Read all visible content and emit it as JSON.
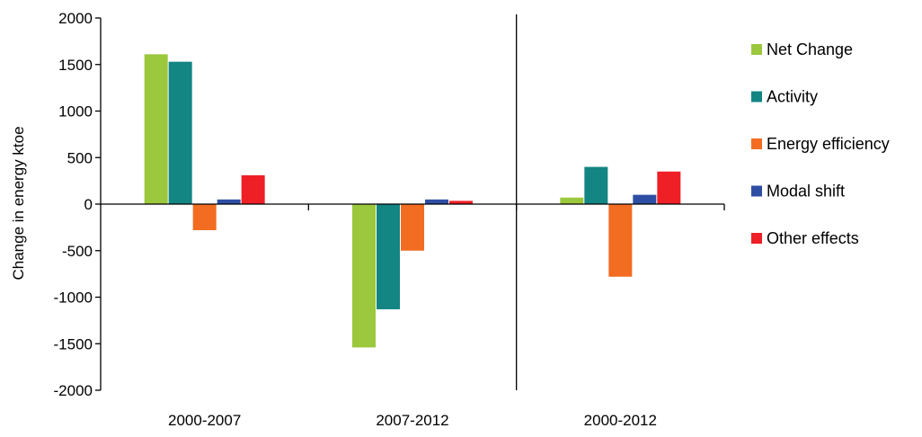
{
  "chart_data": {
    "type": "bar",
    "categories": [
      "2000-2007",
      "2007-2012",
      "2000-2012"
    ],
    "series": [
      {
        "name": "Net Change",
        "values": [
          1610,
          -1540,
          70
        ],
        "color": "#9BC83C"
      },
      {
        "name": "Activity",
        "values": [
          1530,
          -1130,
          400
        ],
        "color": "#138583"
      },
      {
        "name": "Energy efficiency",
        "values": [
          -280,
          -500,
          -780
        ],
        "color": "#F26C21"
      },
      {
        "name": "Modal shift",
        "values": [
          50,
          50,
          100
        ],
        "color": "#2E4EA4"
      },
      {
        "name": "Other effects",
        "values": [
          310,
          35,
          350
        ],
        "color": "#EE1F25"
      }
    ],
    "title": "",
    "xlabel": "",
    "ylabel": "Change in energy ktoe",
    "ylim": [
      -2000,
      2000
    ],
    "yticks": [
      2000,
      1500,
      1000,
      500,
      0,
      -500,
      -1000,
      -1500,
      -2000
    ],
    "ytick_labels": [
      "2000",
      "1500",
      "1000",
      "500",
      "0",
      "-500",
      "-1000",
      "-1500",
      "-2000"
    ],
    "grid": false,
    "legend_position": "right",
    "separator_after_category": 1
  }
}
